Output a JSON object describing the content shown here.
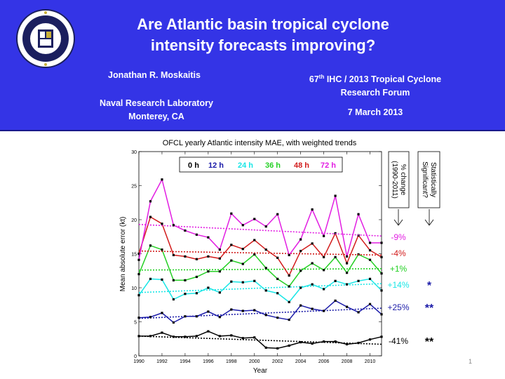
{
  "slide": {
    "title_line1": "Are Atlantic basin tropical cyclone",
    "title_line2": "intensity forecasts improving?",
    "author": "Jonathan R. Moskaitis",
    "lab_line1": "Naval Research Laboratory",
    "lab_line2": "Monterey, CA",
    "conf_ord": "67",
    "conf_sup": "th",
    "conf_rest": " IHC / 2013 Tropical Cyclone",
    "conf_line2": "Research Forum",
    "date": "7 March 2013",
    "slide_number": "1"
  },
  "colors": {
    "header_bg": "#3434e6",
    "0 h": "#000000",
    "12 h": "#1a1aa8",
    "24 h": "#19e6e6",
    "36 h": "#24d024",
    "48 h": "#d21c1c",
    "72 h": "#e21ee2"
  },
  "annotations": {
    "pct_change_line1": "% change",
    "pct_change_line2": "(1990-2011)",
    "signif_line1": "Statistically",
    "signif_line2": "Significant?"
  },
  "chart_data": {
    "type": "line",
    "title": "OFCL  yearly Atlantic intensity MAE, with weighted trends",
    "xlabel": "Year",
    "ylabel": "Mean absolute error (kt)",
    "xlim": [
      1990,
      2011
    ],
    "ylim": [
      0,
      30
    ],
    "xticks": [
      1990,
      1992,
      1994,
      1996,
      1998,
      2000,
      2002,
      2004,
      2006,
      2008,
      2010
    ],
    "yticks": [
      0,
      5,
      10,
      15,
      20,
      25,
      30
    ],
    "x": [
      1990,
      1991,
      1992,
      1993,
      1994,
      1995,
      1996,
      1997,
      1998,
      1999,
      2000,
      2001,
      2002,
      2003,
      2004,
      2005,
      2006,
      2007,
      2008,
      2009,
      2010,
      2011
    ],
    "legend_placement": "top-right",
    "series": [
      {
        "name": "0 h",
        "values": [
          2.9,
          2.9,
          3.4,
          2.8,
          2.8,
          2.9,
          3.6,
          2.9,
          3.0,
          2.6,
          2.7,
          1.2,
          1.1,
          1.5,
          2.0,
          1.8,
          2.1,
          2.1,
          1.7,
          1.9,
          2.4,
          2.8
        ],
        "trend": [
          2.9,
          1.7
        ],
        "pct_change": "-41%",
        "significance": "**"
      },
      {
        "name": "12 h",
        "values": [
          5.6,
          5.7,
          6.3,
          4.9,
          5.8,
          5.8,
          6.5,
          5.7,
          6.8,
          6.6,
          6.7,
          6.0,
          5.6,
          5.3,
          7.4,
          6.9,
          6.6,
          8.1,
          7.2,
          6.4,
          7.6,
          6.1
        ],
        "trend": [
          5.5,
          7.0
        ],
        "pct_change": "+25%",
        "significance": "**"
      },
      {
        "name": "24 h",
        "values": [
          8.9,
          11.3,
          11.2,
          8.3,
          9.1,
          9.2,
          10.0,
          9.3,
          10.9,
          10.8,
          11.0,
          9.6,
          9.2,
          7.9,
          10.0,
          10.5,
          9.8,
          11.0,
          10.5,
          11.0,
          11.3,
          9.6
        ],
        "trend": [
          9.3,
          10.6
        ],
        "pct_change": "+14%",
        "significance": "*"
      },
      {
        "name": "36 h",
        "values": [
          12.0,
          16.2,
          15.6,
          11.1,
          11.1,
          11.6,
          12.4,
          12.4,
          14.0,
          13.5,
          14.9,
          12.9,
          11.3,
          10.2,
          12.5,
          13.6,
          12.6,
          14.5,
          12.2,
          14.9,
          14.1,
          12.1
        ],
        "trend": [
          12.6,
          12.8
        ],
        "pct_change": "+1%",
        "significance": ""
      },
      {
        "name": "48 h",
        "values": [
          15.0,
          20.4,
          19.4,
          14.8,
          14.6,
          14.2,
          14.6,
          14.3,
          16.3,
          15.7,
          17.0,
          15.6,
          14.4,
          11.8,
          15.4,
          16.5,
          14.5,
          18.0,
          13.6,
          17.7,
          15.5,
          14.5
        ],
        "trend": [
          15.4,
          14.8
        ],
        "pct_change": "-4%",
        "significance": ""
      },
      {
        "name": "72 h",
        "values": [
          14.1,
          22.7,
          25.9,
          19.2,
          18.4,
          17.8,
          17.4,
          15.6,
          20.9,
          19.2,
          20.1,
          19.0,
          20.8,
          14.8,
          17.1,
          21.5,
          17.6,
          23.5,
          14.6,
          20.8,
          16.6,
          16.6
        ],
        "trend": [
          19.3,
          17.6
        ],
        "pct_change": "-9%",
        "significance": ""
      }
    ]
  }
}
